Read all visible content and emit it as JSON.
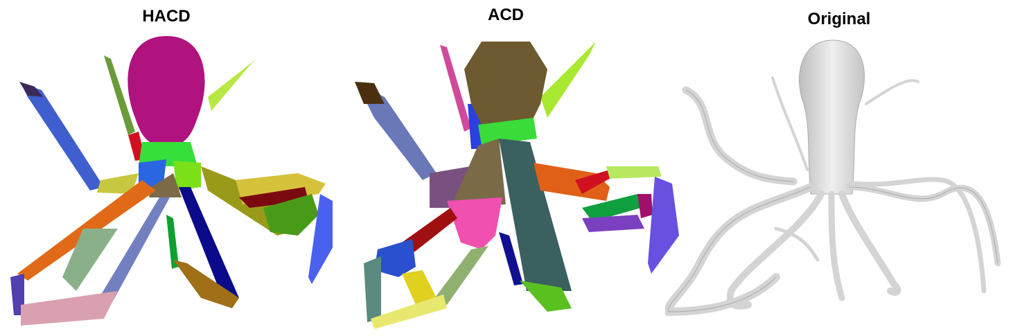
{
  "panels": [
    {
      "title": "HACD"
    },
    {
      "title": "ACD"
    },
    {
      "title": "Original"
    }
  ],
  "colors": {
    "hacd_head": "#b0127e",
    "acd_head": "#6e5a30",
    "original_mesh": "#d4d4d4"
  }
}
